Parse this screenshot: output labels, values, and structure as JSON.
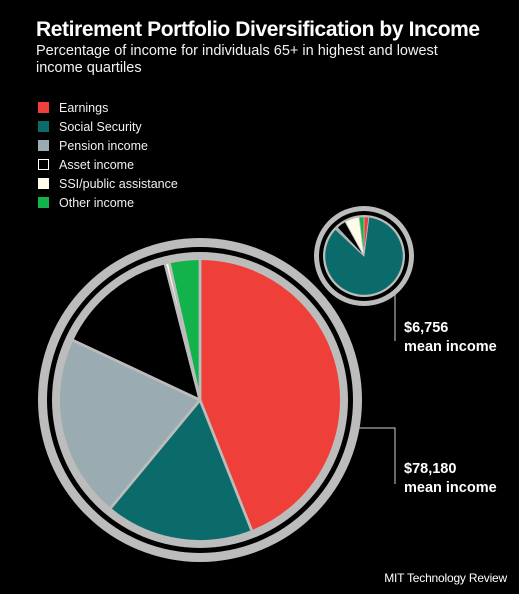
{
  "chart_data": {
    "type": "pie",
    "title": "Retirement Portfolio Diversification by Income",
    "subtitle": "Percentage of income for individuals 65+ in highest and lowest income quartiles",
    "categories": [
      "Earnings",
      "Social Security",
      "Pension income",
      "Asset income",
      "SSI/public assistance",
      "Other income"
    ],
    "colors": [
      "#ee3f38",
      "#0b6b6b",
      "#9aabb2",
      "#000000",
      "#fffbe8",
      "#12b34a"
    ],
    "series": [
      {
        "name": "$78,180 mean income",
        "values": [
          44,
          17,
          21,
          14,
          0.5,
          3.5
        ],
        "label_amount": "$78,180",
        "label_text": "mean income"
      },
      {
        "name": "$6,756 mean income",
        "values": [
          2,
          85,
          1,
          4,
          6,
          2
        ],
        "label_amount": "$6,756",
        "label_text": "mean income"
      }
    ],
    "legend_position": "top-left"
  },
  "source": "MIT Technology Review"
}
